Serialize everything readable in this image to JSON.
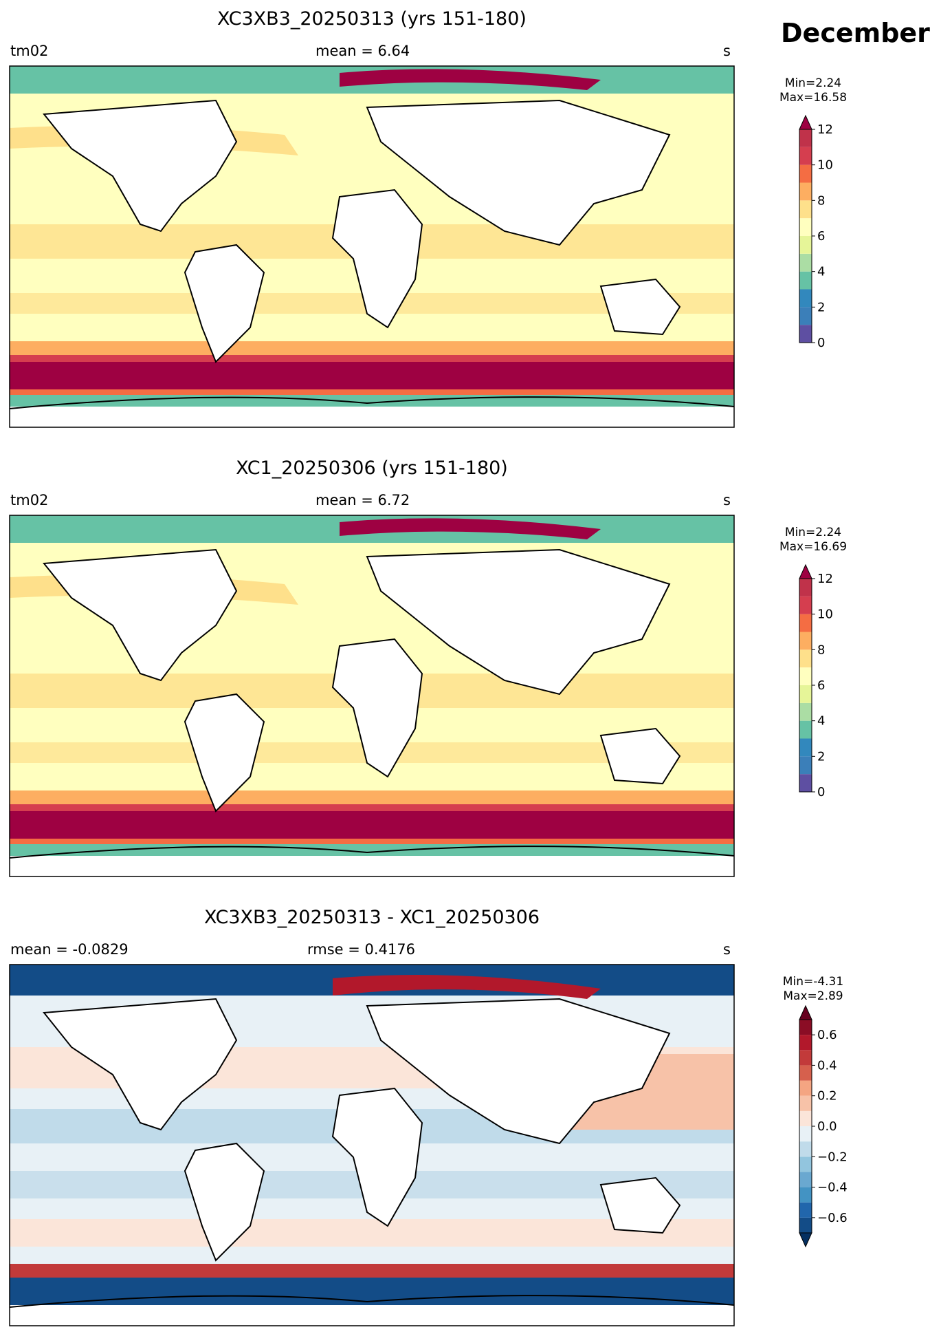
{
  "month": "December",
  "variable_units": "s",
  "panels": [
    {
      "title": "XC3XB3_20250313 (yrs 151-180)",
      "left_label": "tm02",
      "center_label": "mean = 6.64",
      "right_label": "s",
      "min_label": "Min=2.24",
      "max_label": "Max=16.58",
      "colorbar": {
        "ticks": [
          "0",
          "2",
          "4",
          "6",
          "8",
          "10",
          "12"
        ],
        "tick_values": [
          0,
          2,
          4,
          6,
          8,
          10,
          12
        ],
        "vmin": 0,
        "vmax": 12,
        "colors": [
          "#5e4fa2",
          "#3b7fb9",
          "#3288bd",
          "#66c2a5",
          "#abdda4",
          "#e6f598",
          "#ffffbf",
          "#fee08b",
          "#fdae61",
          "#f46d43",
          "#d53e4f",
          "#c0324a"
        ],
        "extend_top_color": "#9e0142",
        "extend_bottom": false,
        "extend_top": true
      }
    },
    {
      "title": "XC1_20250306 (yrs 151-180)",
      "left_label": "tm02",
      "center_label": "mean = 6.72",
      "right_label": "s",
      "min_label": "Min=2.24",
      "max_label": "Max=16.69",
      "colorbar": {
        "ticks": [
          "0",
          "2",
          "4",
          "6",
          "8",
          "10",
          "12"
        ],
        "tick_values": [
          0,
          2,
          4,
          6,
          8,
          10,
          12
        ],
        "vmin": 0,
        "vmax": 12,
        "colors": [
          "#5e4fa2",
          "#3b7fb9",
          "#3288bd",
          "#66c2a5",
          "#abdda4",
          "#e6f598",
          "#ffffbf",
          "#fee08b",
          "#fdae61",
          "#f46d43",
          "#d53e4f",
          "#c0324a"
        ],
        "extend_top_color": "#9e0142",
        "extend_bottom": false,
        "extend_top": true
      }
    },
    {
      "title": "XC3XB3_20250313 - XC1_20250306",
      "left_label": "mean = -0.0829",
      "center_label": "rmse = 0.4176",
      "right_label": "s",
      "min_label": "Min=-4.31",
      "max_label": "Max=2.89",
      "colorbar": {
        "ticks": [
          "−0.6",
          "−0.4",
          "−0.2",
          "0.0",
          "0.2",
          "0.4",
          "0.6"
        ],
        "tick_values": [
          -0.6,
          -0.4,
          -0.2,
          0.0,
          0.2,
          0.4,
          0.6
        ],
        "vmin": -0.7,
        "vmax": 0.7,
        "colors": [
          "#134c87",
          "#2166ac",
          "#4393c3",
          "#6aa8d0",
          "#92c5de",
          "#c0dbea",
          "#e8f1f6",
          "#fbe5d9",
          "#f7c2a8",
          "#f4a582",
          "#d6604d",
          "#c23a3a",
          "#b2182b",
          "#8b0d25"
        ],
        "extend_top_color": "#67001f",
        "extend_bottom_color": "#053061",
        "extend_bottom": true,
        "extend_top": true
      }
    }
  ]
}
